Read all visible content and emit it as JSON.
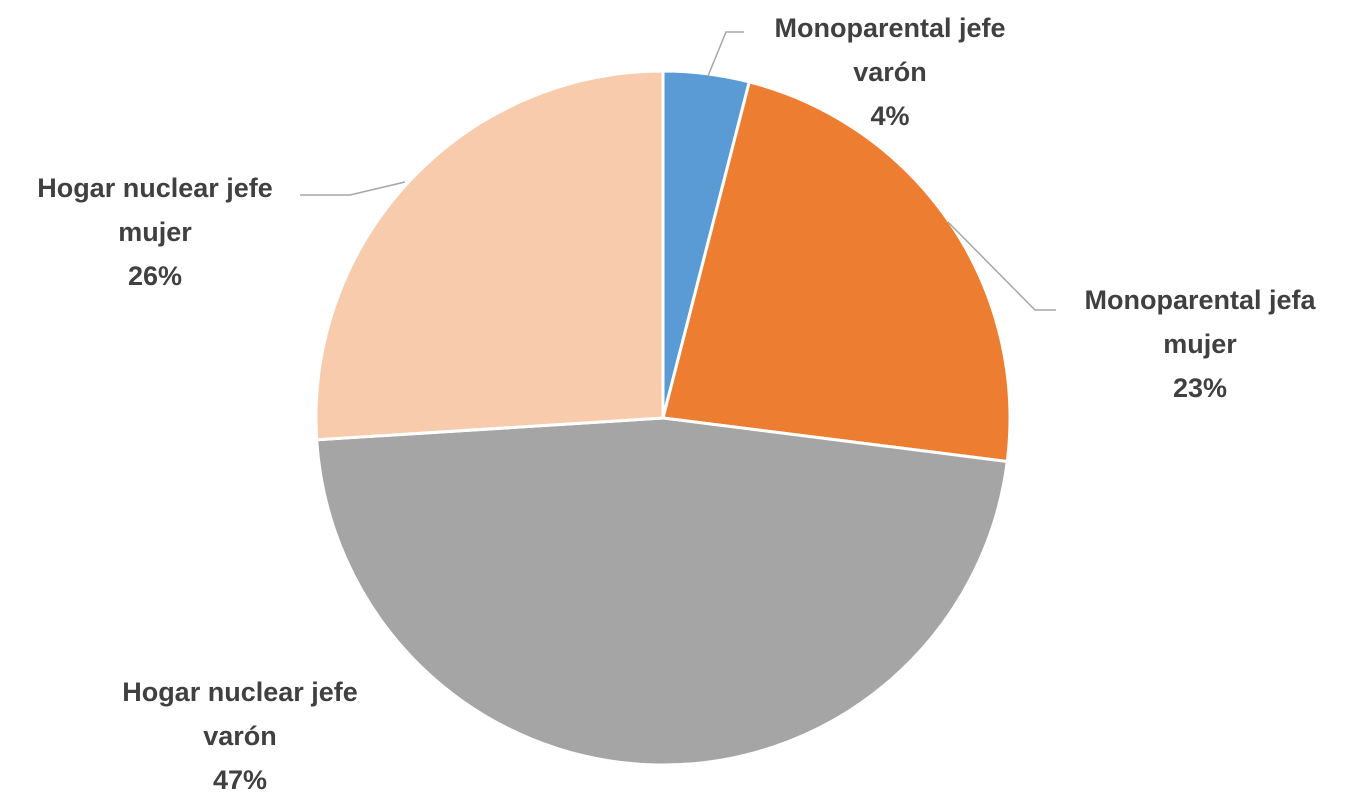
{
  "chart_data": {
    "type": "pie",
    "categories": [
      "Monoparental jefe varón",
      "Monoparental jefa mujer",
      "Hogar nuclear jefe varón",
      "Hogar nuclear jefe mujer"
    ],
    "values": [
      4,
      23,
      47,
      26
    ],
    "value_labels": [
      "4%",
      "23%",
      "47%",
      "26%"
    ],
    "colors": [
      "#5b9bd5",
      "#ed7d31",
      "#a5a5a5",
      "#f8cbad"
    ]
  }
}
